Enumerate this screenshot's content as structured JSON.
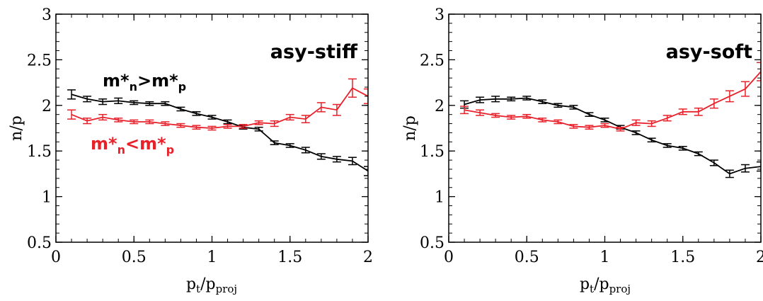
{
  "chart_data": [
    {
      "type": "line",
      "annotation": "asy-stiff",
      "xlabel": {
        "main": "p",
        "sub1": "t",
        "mid": "/p",
        "sub2": "proj"
      },
      "ylabel": "n/p",
      "xlim": [
        0,
        2
      ],
      "ylim": [
        0.5,
        3
      ],
      "xticks": [
        "0",
        "0.5",
        "1",
        "1.5",
        "2"
      ],
      "yticks": [
        "0.5",
        "1",
        "1.5",
        "2",
        "2.5",
        "3"
      ],
      "xtick_values": [
        0,
        0.5,
        1,
        1.5,
        2
      ],
      "ytick_values": [
        0.5,
        1,
        1.5,
        2,
        2.5,
        3
      ],
      "series": [
        {
          "label": {
            "base": "m*",
            "sub1": "n",
            "op": ">",
            "base2": "m*",
            "sub2": "p"
          },
          "color": "#000000",
          "x": [
            0.1,
            0.2,
            0.3,
            0.4,
            0.5,
            0.6,
            0.7,
            0.8,
            0.9,
            1.0,
            1.1,
            1.2,
            1.3,
            1.4,
            1.5,
            1.6,
            1.7,
            1.8,
            1.9,
            2.0
          ],
          "y": [
            2.12,
            2.07,
            2.04,
            2.05,
            2.03,
            2.02,
            2.02,
            1.96,
            1.91,
            1.87,
            1.82,
            1.76,
            1.74,
            1.59,
            1.56,
            1.51,
            1.44,
            1.41,
            1.39,
            1.28
          ],
          "err": [
            0.05,
            0.03,
            0.03,
            0.03,
            0.02,
            0.02,
            0.02,
            0.02,
            0.02,
            0.02,
            0.02,
            0.02,
            0.02,
            0.02,
            0.02,
            0.03,
            0.03,
            0.03,
            0.04,
            0.05
          ]
        },
        {
          "label": {
            "base": "m*",
            "sub1": "n",
            "op": "<",
            "base2": "m*",
            "sub2": "p"
          },
          "color": "#e8202a",
          "x": [
            0.1,
            0.2,
            0.3,
            0.4,
            0.5,
            0.6,
            0.7,
            0.8,
            0.9,
            1.0,
            1.1,
            1.2,
            1.3,
            1.4,
            1.5,
            1.6,
            1.7,
            1.8,
            1.9,
            2.0
          ],
          "y": [
            1.9,
            1.83,
            1.87,
            1.84,
            1.82,
            1.82,
            1.8,
            1.78,
            1.76,
            1.75,
            1.77,
            1.77,
            1.81,
            1.8,
            1.87,
            1.85,
            1.98,
            1.95,
            2.19,
            2.1
          ],
          "err": [
            0.05,
            0.03,
            0.03,
            0.02,
            0.02,
            0.02,
            0.02,
            0.02,
            0.02,
            0.02,
            0.02,
            0.02,
            0.02,
            0.03,
            0.03,
            0.04,
            0.05,
            0.06,
            0.1,
            0.08
          ]
        }
      ]
    },
    {
      "type": "line",
      "annotation": "asy-soft",
      "xlabel": {
        "main": "p",
        "sub1": "t",
        "mid": "/p",
        "sub2": "proj"
      },
      "ylabel": "n/p",
      "xlim": [
        0,
        2
      ],
      "ylim": [
        0.5,
        3
      ],
      "xticks": [
        "0",
        "0.5",
        "1",
        "1.5",
        "2"
      ],
      "yticks": [
        "0.5",
        "1",
        "1.5",
        "2",
        "2.5",
        "3"
      ],
      "xtick_values": [
        0,
        0.5,
        1,
        1.5,
        2
      ],
      "ytick_values": [
        0.5,
        1,
        1.5,
        2,
        2.5,
        3
      ],
      "series": [
        {
          "color": "#000000",
          "x": [
            0.1,
            0.2,
            0.3,
            0.4,
            0.5,
            0.6,
            0.7,
            0.8,
            0.9,
            1.0,
            1.1,
            1.2,
            1.3,
            1.4,
            1.5,
            1.6,
            1.7,
            1.8,
            1.9,
            2.0
          ],
          "y": [
            2.01,
            2.06,
            2.07,
            2.07,
            2.08,
            2.04,
            2.0,
            1.98,
            1.9,
            1.84,
            1.76,
            1.7,
            1.62,
            1.56,
            1.53,
            1.47,
            1.37,
            1.25,
            1.31,
            1.33
          ],
          "err": [
            0.04,
            0.03,
            0.03,
            0.02,
            0.02,
            0.02,
            0.02,
            0.02,
            0.02,
            0.02,
            0.02,
            0.02,
            0.02,
            0.02,
            0.02,
            0.02,
            0.03,
            0.04,
            0.04,
            0.05
          ]
        },
        {
          "color": "#e8202a",
          "x": [
            0.1,
            0.2,
            0.3,
            0.4,
            0.5,
            0.6,
            0.7,
            0.8,
            0.9,
            1.0,
            1.1,
            1.2,
            1.3,
            1.4,
            1.5,
            1.6,
            1.7,
            1.8,
            1.9,
            2.0
          ],
          "y": [
            1.95,
            1.92,
            1.89,
            1.87,
            1.88,
            1.84,
            1.82,
            1.77,
            1.76,
            1.78,
            1.74,
            1.81,
            1.8,
            1.86,
            1.93,
            1.93,
            2.02,
            2.1,
            2.18,
            2.37
          ],
          "err": [
            0.04,
            0.03,
            0.02,
            0.02,
            0.02,
            0.02,
            0.02,
            0.02,
            0.02,
            0.02,
            0.02,
            0.03,
            0.03,
            0.03,
            0.03,
            0.04,
            0.05,
            0.06,
            0.08,
            0.1
          ]
        }
      ]
    }
  ]
}
